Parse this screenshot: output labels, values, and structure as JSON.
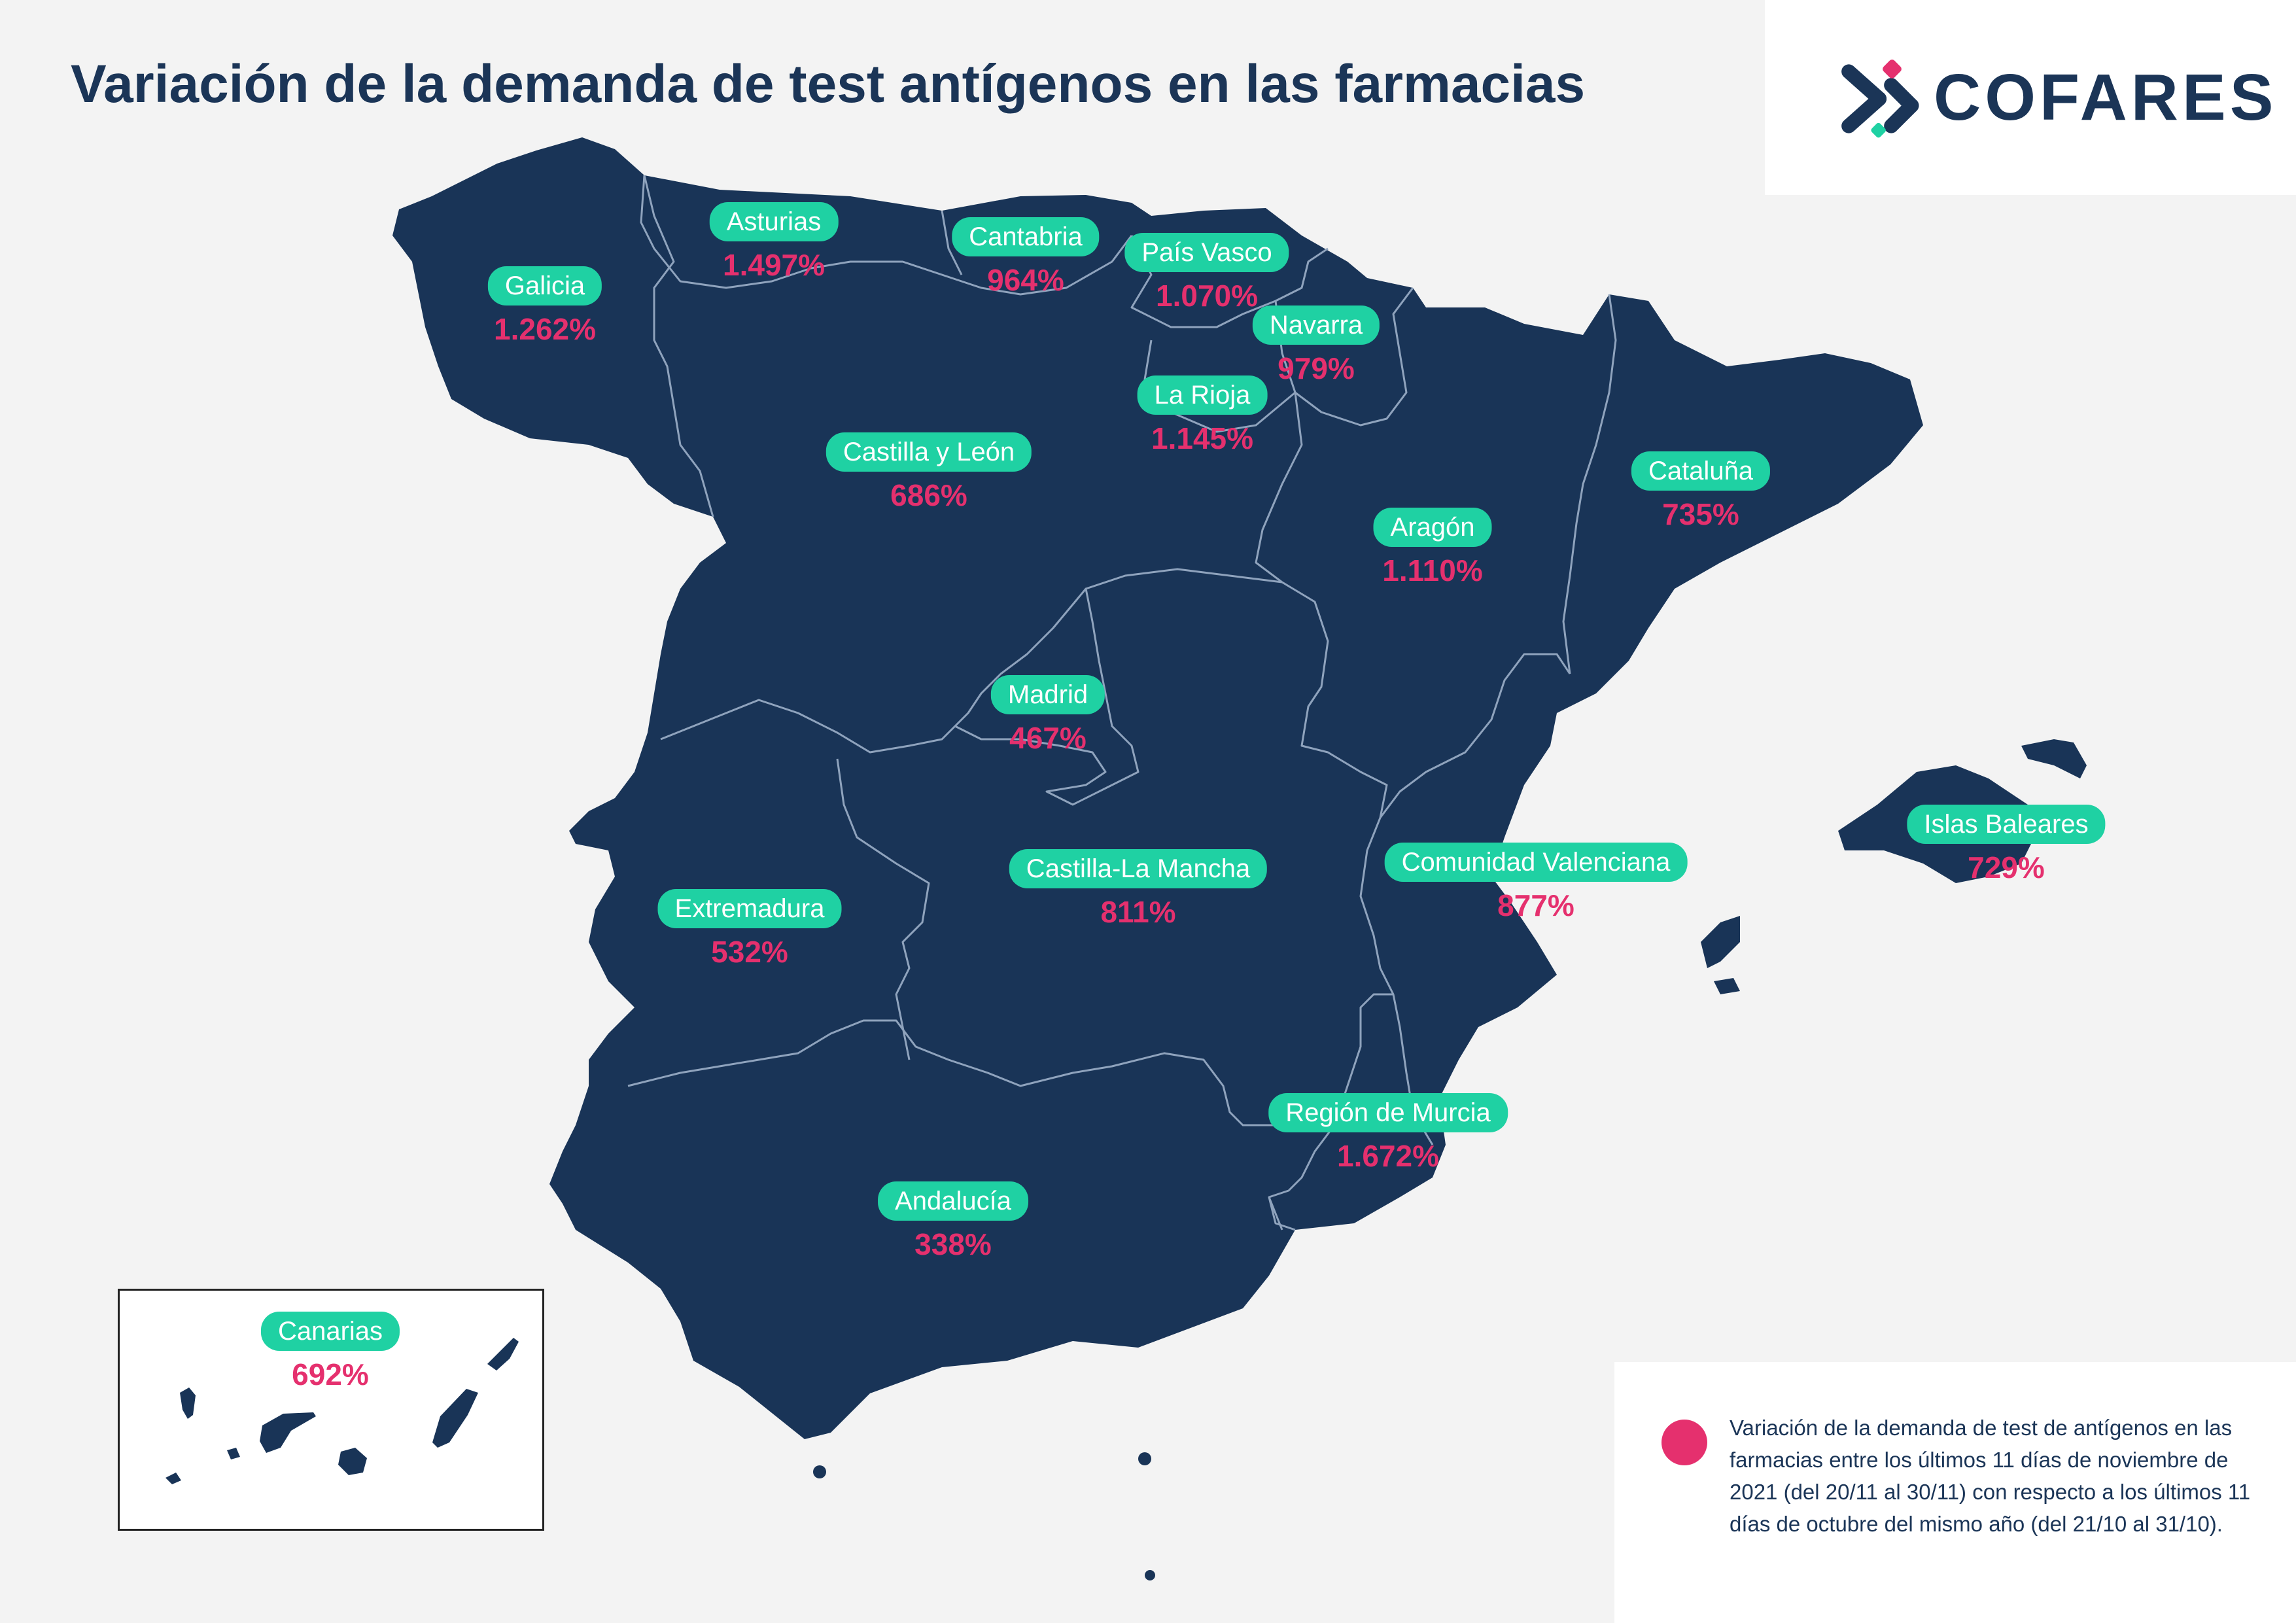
{
  "title": "Variación de la demanda de test antígenos en las farmacias",
  "brand": {
    "name": "COFARES",
    "logo_icon": "cofares-x-icon",
    "colors": {
      "navy": "#1b3557",
      "pink": "#e5306e",
      "teal": "#1fd1a3"
    }
  },
  "regions": [
    {
      "name": "Galicia",
      "value": "1.262%"
    },
    {
      "name": "Asturias",
      "value": "1.497%"
    },
    {
      "name": "Cantabria",
      "value": "964%"
    },
    {
      "name": "País Vasco",
      "value": "1.070%"
    },
    {
      "name": "Navarra",
      "value": "979%"
    },
    {
      "name": "La Rioja",
      "value": "1.145%"
    },
    {
      "name": "Castilla y León",
      "value": "686%"
    },
    {
      "name": "Aragón",
      "value": "1.110%"
    },
    {
      "name": "Cataluña",
      "value": "735%"
    },
    {
      "name": "Madrid",
      "value": "467%"
    },
    {
      "name": "Islas Baleares",
      "value": "729%"
    },
    {
      "name": "Comunidad Valenciana",
      "value": "877%"
    },
    {
      "name": "Castilla-La Mancha",
      "value": "811%"
    },
    {
      "name": "Extremadura",
      "value": "532%"
    },
    {
      "name": "Región de Murcia",
      "value": "1.672%"
    },
    {
      "name": "Andalucía",
      "value": "338%"
    },
    {
      "name": "Canarias",
      "value": "692%"
    }
  ],
  "legend": {
    "text": "Variación de la demanda de test de antígenos en las farmacias entre los últimos 11 días de noviembre de 2021 (del 20/11 al 30/11) con respecto a los últimos 11 días de octubre del mismo año (del 21/10 al 31/10)."
  }
}
